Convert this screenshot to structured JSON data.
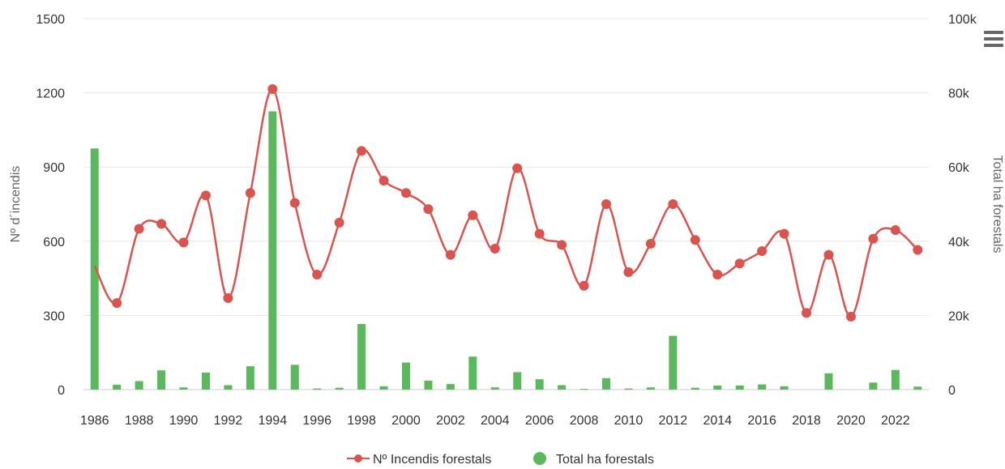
{
  "chart_data": {
    "type": "bar",
    "title": "",
    "xlabel": "",
    "ylabel": "Nº d´incendis",
    "y2label": "Total ha forestals",
    "ylim": [
      0,
      1500
    ],
    "y2lim": [
      0,
      100000
    ],
    "yticks": [
      "0",
      "300",
      "600",
      "900",
      "1200",
      "1500"
    ],
    "y2ticks": [
      "0",
      "20k",
      "40k",
      "60k",
      "80k",
      "100k"
    ],
    "xticks": [
      "1986",
      "1988",
      "1990",
      "1992",
      "1994",
      "1996",
      "1998",
      "2000",
      "2002",
      "2004",
      "2006",
      "2008",
      "2010",
      "2012",
      "2014",
      "2016",
      "2018",
      "2020",
      "2022"
    ],
    "x": [
      1986,
      1987,
      1988,
      1989,
      1990,
      1991,
      1992,
      1993,
      1994,
      1995,
      1996,
      1997,
      1998,
      1999,
      2000,
      2001,
      2002,
      2003,
      2004,
      2005,
      2006,
      2007,
      2008,
      2009,
      2010,
      2011,
      2012,
      2013,
      2014,
      2015,
      2016,
      2017,
      2018,
      2019,
      2020,
      2021,
      2022,
      2023
    ],
    "series": [
      {
        "name": "Nº Incendis forestals",
        "type": "spline",
        "axis": "left",
        "color": "#d9534f",
        "values": [
          500,
          350,
          650,
          670,
          595,
          785,
          370,
          795,
          1215,
          755,
          465,
          675,
          965,
          845,
          795,
          730,
          545,
          705,
          570,
          895,
          630,
          585,
          420,
          750,
          475,
          590,
          750,
          605,
          465,
          510,
          560,
          630,
          310,
          545,
          295,
          610,
          645,
          565
        ]
      },
      {
        "name": "Total ha forestals",
        "type": "column",
        "axis": "right",
        "color": "#5cb85c",
        "values": [
          65000,
          1300,
          2300,
          5200,
          600,
          4600,
          1200,
          6300,
          75000,
          6700,
          300,
          500,
          17700,
          900,
          7300,
          2400,
          1500,
          8900,
          600,
          4700,
          2800,
          1200,
          200,
          3100,
          300,
          600,
          14500,
          500,
          1100,
          1100,
          1400,
          900,
          0,
          4400,
          0,
          1900,
          5300,
          800
        ]
      }
    ],
    "grid": true,
    "legend_position": "bottom-center"
  },
  "menu": {
    "icon": "hamburger-menu-icon"
  }
}
